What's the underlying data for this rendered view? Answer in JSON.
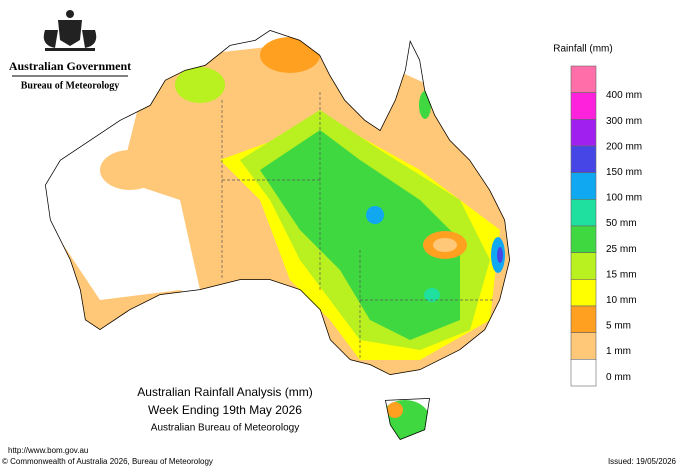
{
  "header": {
    "government": "Australian Government",
    "bureau": "Bureau of Meteorology"
  },
  "legend": {
    "title": "Rainfall (mm)",
    "items": [
      {
        "label": null,
        "color": "#ff6ea8"
      },
      {
        "label": "400 mm",
        "color": "#ff22dd"
      },
      {
        "label": "300 mm",
        "color": "#a020f0"
      },
      {
        "label": "200 mm",
        "color": "#4646e6"
      },
      {
        "label": "150 mm",
        "color": "#10a8f0"
      },
      {
        "label": "100 mm",
        "color": "#20e0a0"
      },
      {
        "label": "50 mm",
        "color": "#40d840"
      },
      {
        "label": "25 mm",
        "color": "#b8f020"
      },
      {
        "label": "15 mm",
        "color": "#ffff00"
      },
      {
        "label": "10 mm",
        "color": "#ffa020"
      },
      {
        "label": "5 mm",
        "color": "#ffc878"
      },
      {
        "label": "1 mm",
        "color": "#ffffff"
      },
      {
        "label": "0 mm",
        "color": null
      }
    ]
  },
  "map_title": {
    "line1": "Australian Rainfall Analysis (mm)",
    "line2": "Week Ending 19th May 2026",
    "line3": "Australian Bureau of Meteorology"
  },
  "footer": {
    "url": "http://www.bom.gov.au",
    "copyright": "© Commonwealth of Australia 2026, Bureau of Meteorology",
    "issued": "Issued: 19/05/2026"
  }
}
